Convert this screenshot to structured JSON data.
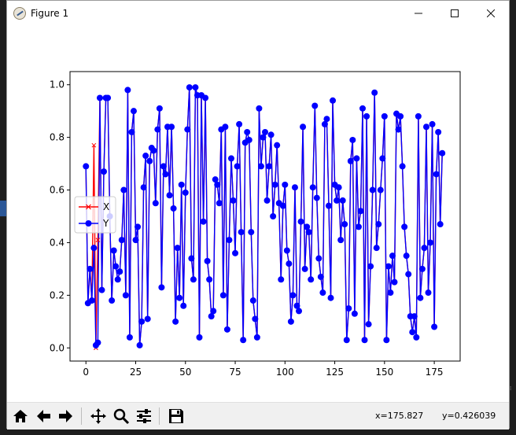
{
  "window": {
    "title": "Figure 1"
  },
  "chart_data": {
    "type": "line",
    "title": "",
    "xlabel": "",
    "ylabel": "",
    "xlim": [
      -8,
      188
    ],
    "ylim": [
      -0.05,
      1.05
    ],
    "xticks": [
      "0",
      "25",
      "50",
      "75",
      "100",
      "125",
      "150",
      "175"
    ],
    "yticks": [
      "0.0",
      "0.2",
      "0.4",
      "0.6",
      "0.8",
      "1.0"
    ],
    "grid": false,
    "legend_position": "center-left",
    "series": [
      {
        "name": "X",
        "color": "#ff0000",
        "marker": "x",
        "x": [
          0,
          1,
          2,
          3,
          4,
          5,
          6,
          7,
          8,
          9,
          10,
          11,
          12,
          13,
          14,
          15,
          16,
          17,
          18,
          19,
          20,
          21,
          22,
          23,
          24,
          25,
          26,
          27,
          28,
          29,
          30,
          31,
          32,
          33,
          34,
          35,
          36,
          37,
          38,
          39,
          40,
          41,
          42,
          43,
          44,
          45,
          46,
          47,
          48,
          49,
          50,
          51,
          52,
          53,
          54,
          55,
          56,
          57,
          58,
          59,
          60,
          61,
          62,
          63,
          64,
          65,
          66,
          67,
          68,
          69,
          70,
          71,
          72,
          73,
          74,
          75,
          76,
          77,
          78,
          79,
          80,
          81,
          82,
          83,
          84,
          85,
          86,
          87,
          88,
          89,
          90,
          91,
          92,
          93,
          94,
          95,
          96,
          97,
          98,
          99,
          100,
          101,
          102,
          103,
          104,
          105,
          106,
          107,
          108,
          109,
          110,
          111,
          112,
          113,
          114,
          115,
          116,
          117,
          118,
          119,
          120,
          121,
          122,
          123,
          124,
          125,
          126,
          127,
          128,
          129,
          130,
          131,
          132,
          133,
          134,
          135,
          136,
          137,
          138,
          139,
          140,
          141,
          142,
          143,
          144,
          145,
          146,
          147,
          148,
          149,
          150,
          151,
          152,
          153,
          154,
          155,
          156,
          157,
          158,
          159,
          160,
          161,
          162,
          163,
          164,
          165,
          166,
          167,
          168,
          169,
          170,
          171,
          172,
          173,
          174,
          175,
          176,
          177,
          178,
          179
        ],
        "y": [
          0.69,
          0.17,
          0.3,
          0.18,
          0.77,
          0.0,
          0.41,
          0.95,
          0.22,
          0.67,
          0.95,
          0.95,
          0.5,
          0.18,
          0.37,
          0.31,
          0.26,
          0.29,
          0.41,
          0.6,
          0.2,
          0.98,
          0.04,
          0.82,
          0.9,
          0.41,
          0.46,
          0.01,
          0.1,
          0.61,
          0.73,
          0.11,
          0.71,
          0.76,
          0.75,
          0.55,
          0.83,
          0.91,
          0.23,
          0.69,
          0.66,
          0.84,
          0.58,
          0.84,
          0.53,
          0.1,
          0.38,
          0.19,
          0.62,
          0.16,
          0.59,
          0.83,
          0.99,
          0.34,
          0.26,
          0.99,
          0.96,
          0.04,
          0.96,
          0.48,
          0.95,
          0.33,
          0.26,
          0.12,
          0.14,
          0.64,
          0.62,
          0.55,
          0.83,
          0.2,
          0.84,
          0.07,
          0.41,
          0.72,
          0.56,
          0.36,
          0.69,
          0.85,
          0.44,
          0.03,
          0.78,
          0.82,
          0.79,
          0.44,
          0.18,
          0.11,
          0.04,
          0.91,
          0.69,
          0.8,
          0.82,
          0.56,
          0.69,
          0.81,
          0.5,
          0.62,
          0.77,
          0.55,
          0.26,
          0.54,
          0.62,
          0.37,
          0.32,
          0.1,
          0.2,
          0.61,
          0.16,
          0.14,
          0.48,
          0.84,
          0.3,
          0.46,
          0.44,
          0.26,
          0.61,
          0.92,
          0.57,
          0.34,
          0.27,
          0.21,
          0.85,
          0.87,
          0.54,
          0.19,
          0.94,
          0.62,
          0.56,
          0.61,
          0.41,
          0.56,
          0.47,
          0.03,
          0.15,
          0.71,
          0.79,
          0.13,
          0.72,
          0.46,
          0.52,
          0.91,
          0.03,
          0.88,
          0.09,
          0.31,
          0.6,
          0.97,
          0.38,
          0.47,
          0.6,
          0.72,
          0.88,
          0.03,
          0.31,
          0.21,
          0.35,
          0.25,
          0.89,
          0.83,
          0.88,
          0.69,
          0.46,
          0.35,
          0.28,
          0.12,
          0.06,
          0.12,
          0.04,
          0.88,
          0.19,
          0.3,
          0.38,
          0.84,
          0.21,
          0.4,
          0.85,
          0.08,
          0.66,
          0.82,
          0.47,
          0.74
        ]
      },
      {
        "name": "Y",
        "color": "#0000ff",
        "marker": "o",
        "x": [
          0,
          1,
          2,
          3,
          4,
          5,
          6,
          7,
          8,
          9,
          10,
          11,
          12,
          13,
          14,
          15,
          16,
          17,
          18,
          19,
          20,
          21,
          22,
          23,
          24,
          25,
          26,
          27,
          28,
          29,
          30,
          31,
          32,
          33,
          34,
          35,
          36,
          37,
          38,
          39,
          40,
          41,
          42,
          43,
          44,
          45,
          46,
          47,
          48,
          49,
          50,
          51,
          52,
          53,
          54,
          55,
          56,
          57,
          58,
          59,
          60,
          61,
          62,
          63,
          64,
          65,
          66,
          67,
          68,
          69,
          70,
          71,
          72,
          73,
          74,
          75,
          76,
          77,
          78,
          79,
          80,
          81,
          82,
          83,
          84,
          85,
          86,
          87,
          88,
          89,
          90,
          91,
          92,
          93,
          94,
          95,
          96,
          97,
          98,
          99,
          100,
          101,
          102,
          103,
          104,
          105,
          106,
          107,
          108,
          109,
          110,
          111,
          112,
          113,
          114,
          115,
          116,
          117,
          118,
          119,
          120,
          121,
          122,
          123,
          124,
          125,
          126,
          127,
          128,
          129,
          130,
          131,
          132,
          133,
          134,
          135,
          136,
          137,
          138,
          139,
          140,
          141,
          142,
          143,
          144,
          145,
          146,
          147,
          148,
          149,
          150,
          151,
          152,
          153,
          154,
          155,
          156,
          157,
          158,
          159,
          160,
          161,
          162,
          163,
          164,
          165,
          166,
          167,
          168,
          169,
          170,
          171,
          172,
          173,
          174,
          175,
          176,
          177,
          178,
          179
        ],
        "y": [
          0.69,
          0.17,
          0.3,
          0.18,
          0.38,
          0.01,
          0.02,
          0.95,
          0.22,
          0.67,
          0.95,
          0.95,
          0.5,
          0.18,
          0.37,
          0.31,
          0.26,
          0.29,
          0.41,
          0.6,
          0.2,
          0.98,
          0.04,
          0.82,
          0.9,
          0.41,
          0.46,
          0.01,
          0.1,
          0.61,
          0.73,
          0.11,
          0.71,
          0.76,
          0.75,
          0.55,
          0.83,
          0.91,
          0.23,
          0.69,
          0.66,
          0.84,
          0.58,
          0.84,
          0.53,
          0.1,
          0.38,
          0.19,
          0.62,
          0.16,
          0.59,
          0.83,
          0.99,
          0.34,
          0.26,
          0.99,
          0.96,
          0.04,
          0.96,
          0.48,
          0.95,
          0.33,
          0.26,
          0.12,
          0.14,
          0.64,
          0.62,
          0.55,
          0.83,
          0.2,
          0.84,
          0.07,
          0.41,
          0.72,
          0.56,
          0.36,
          0.69,
          0.85,
          0.44,
          0.03,
          0.78,
          0.82,
          0.79,
          0.44,
          0.18,
          0.11,
          0.04,
          0.91,
          0.69,
          0.8,
          0.82,
          0.56,
          0.69,
          0.81,
          0.5,
          0.62,
          0.77,
          0.55,
          0.26,
          0.54,
          0.62,
          0.37,
          0.32,
          0.1,
          0.2,
          0.61,
          0.16,
          0.14,
          0.48,
          0.84,
          0.3,
          0.46,
          0.44,
          0.26,
          0.61,
          0.92,
          0.57,
          0.34,
          0.27,
          0.21,
          0.85,
          0.87,
          0.54,
          0.19,
          0.94,
          0.62,
          0.56,
          0.61,
          0.41,
          0.56,
          0.47,
          0.03,
          0.15,
          0.71,
          0.79,
          0.13,
          0.72,
          0.46,
          0.52,
          0.91,
          0.03,
          0.88,
          0.09,
          0.31,
          0.6,
          0.97,
          0.38,
          0.47,
          0.6,
          0.72,
          0.88,
          0.03,
          0.31,
          0.21,
          0.35,
          0.25,
          0.89,
          0.83,
          0.88,
          0.69,
          0.46,
          0.35,
          0.28,
          0.12,
          0.06,
          0.12,
          0.04,
          0.88,
          0.19,
          0.3,
          0.38,
          0.84,
          0.21,
          0.4,
          0.85,
          0.08,
          0.66,
          0.82,
          0.47,
          0.74
        ]
      }
    ]
  },
  "toolbar": {
    "buttons": [
      {
        "name": "home-icon"
      },
      {
        "name": "back-arrow-icon"
      },
      {
        "name": "forward-arrow-icon"
      },
      {
        "name": "pan-icon"
      },
      {
        "name": "zoom-icon"
      },
      {
        "name": "subplots-icon"
      },
      {
        "name": "save-icon"
      }
    ],
    "x_readout": "x=175.827",
    "y_readout": "y=0.426039"
  }
}
